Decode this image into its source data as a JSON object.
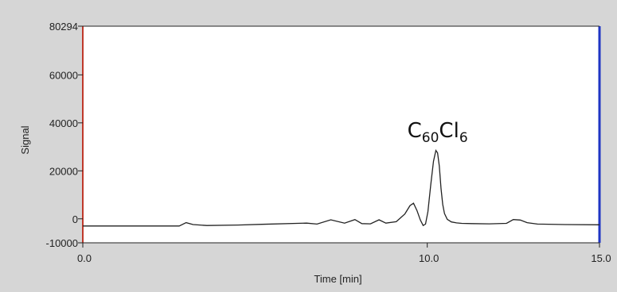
{
  "chart_data": {
    "type": "line",
    "title": "",
    "xlabel": "Time [min]",
    "ylabel": "Signal",
    "xlim": [
      0,
      15
    ],
    "ylim": [
      -10000,
      80294
    ],
    "x_ticks": [
      {
        "value": 0,
        "label": "0.0"
      },
      {
        "value": 10,
        "label": "10.0"
      },
      {
        "value": 15,
        "label": "15.0"
      }
    ],
    "y_ticks": [
      {
        "value": 80294,
        "label": "80294"
      },
      {
        "value": 60000,
        "label": "60000"
      },
      {
        "value": 40000,
        "label": "40000"
      },
      {
        "value": 20000,
        "label": "20000"
      },
      {
        "value": 0,
        "label": "0"
      },
      {
        "value": -10000,
        "label": "-10000"
      }
    ],
    "grid": false,
    "series": [
      {
        "color": "#222222",
        "x": [
          0.0,
          2.0,
          2.8,
          3.0,
          3.2,
          3.6,
          4.5,
          5.2,
          6.5,
          6.8,
          7.2,
          7.6,
          7.9,
          8.1,
          8.35,
          8.6,
          8.8,
          9.1,
          9.35,
          9.5,
          9.6,
          9.7,
          9.8,
          9.88,
          9.95,
          10.02,
          10.1,
          10.18,
          10.25,
          10.3,
          10.35,
          10.4,
          10.45,
          10.5,
          10.58,
          10.7,
          10.85,
          11.0,
          11.3,
          11.8,
          12.3,
          12.5,
          12.7,
          12.9,
          13.2,
          14.0,
          15.0
        ],
        "values": [
          -3000,
          -3000,
          -3000,
          -1600,
          -2400,
          -2800,
          -2600,
          -2300,
          -1800,
          -2200,
          -400,
          -1800,
          -300,
          -2000,
          -2100,
          -400,
          -1800,
          -1200,
          2000,
          5500,
          6500,
          3500,
          -500,
          -2800,
          -2200,
          3000,
          14000,
          24000,
          28500,
          27500,
          22000,
          12500,
          6000,
          2200,
          -200,
          -1300,
          -1700,
          -1900,
          -2000,
          -2100,
          -1900,
          -300,
          -500,
          -1600,
          -2200,
          -2400,
          -2500
        ]
      }
    ],
    "annotations": [
      {
        "base": "C",
        "sub1": "60",
        "mid": "Cl",
        "sub2": "6",
        "x": 10.3,
        "y": 34000
      }
    ],
    "colors": {
      "plot_background": "#ffffff",
      "panel_background": "#d6d6d6",
      "left_border": "#c0392b",
      "right_border": "#1f35c4",
      "axis": "#222222"
    }
  }
}
